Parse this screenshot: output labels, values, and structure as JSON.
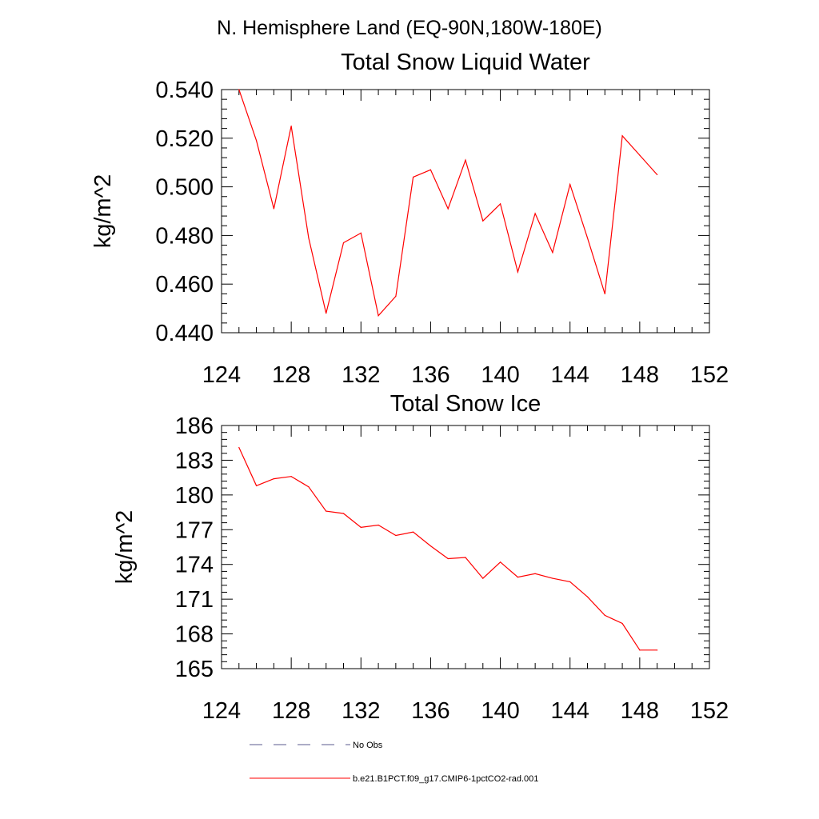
{
  "header": {
    "title": "N. Hemisphere Land (EQ-90N,180W-180E)"
  },
  "chart_data": [
    {
      "type": "line",
      "title": "Total Snow Liquid Water",
      "xlabel": "",
      "ylabel": "kg/m^2",
      "xlim": [
        124,
        152
      ],
      "ylim": [
        0.44,
        0.54
      ],
      "xticks": [
        124,
        128,
        132,
        136,
        140,
        144,
        148,
        152
      ],
      "xtick_labels": [
        "124",
        "128",
        "132",
        "136",
        "140",
        "144",
        "148",
        "152"
      ],
      "yticks": [
        0.44,
        0.46,
        0.48,
        0.5,
        0.52,
        0.54
      ],
      "ytick_labels": [
        "0.440",
        "0.460",
        "0.480",
        "0.500",
        "0.520",
        "0.540"
      ],
      "grid": false,
      "series": [
        {
          "name": "b.e21.B1PCT.f09_g17.CMIP6-1pctCO2-rad.001",
          "color": "#ff0000",
          "x": [
            125,
            126,
            127,
            128,
            129,
            130,
            131,
            132,
            133,
            134,
            135,
            136,
            137,
            138,
            139,
            140,
            141,
            142,
            143,
            144,
            145,
            146,
            147,
            148,
            149
          ],
          "y": [
            0.54,
            0.519,
            0.491,
            0.525,
            0.479,
            0.448,
            0.477,
            0.481,
            0.447,
            0.455,
            0.504,
            0.507,
            0.491,
            0.511,
            0.486,
            0.493,
            0.465,
            0.489,
            0.473,
            0.501,
            0.479,
            0.456,
            0.521,
            0.513,
            0.505
          ]
        }
      ]
    },
    {
      "type": "line",
      "title": "Total Snow Ice",
      "xlabel": "",
      "ylabel": "kg/m^2",
      "xlim": [
        124,
        152
      ],
      "ylim": [
        165,
        186
      ],
      "xticks": [
        124,
        128,
        132,
        136,
        140,
        144,
        148,
        152
      ],
      "xtick_labels": [
        "124",
        "128",
        "132",
        "136",
        "140",
        "144",
        "148",
        "152"
      ],
      "yticks": [
        165,
        168,
        171,
        174,
        177,
        180,
        183,
        186
      ],
      "ytick_labels": [
        "165",
        "168",
        "171",
        "174",
        "177",
        "180",
        "183",
        "186"
      ],
      "grid": false,
      "series": [
        {
          "name": "b.e21.B1PCT.f09_g17.CMIP6-1pctCO2-rad.001",
          "color": "#ff0000",
          "x": [
            125,
            126,
            127,
            128,
            129,
            130,
            131,
            132,
            133,
            134,
            135,
            136,
            137,
            138,
            139,
            140,
            141,
            142,
            143,
            144,
            145,
            146,
            147,
            148,
            149
          ],
          "y": [
            184.1,
            180.8,
            181.4,
            181.6,
            180.7,
            178.6,
            178.4,
            177.2,
            177.4,
            176.5,
            176.8,
            175.6,
            174.5,
            174.6,
            172.8,
            174.2,
            172.9,
            173.2,
            172.8,
            172.5,
            171.2,
            169.6,
            168.9,
            166.6,
            166.6
          ]
        }
      ]
    }
  ],
  "legend": {
    "placement": "bottom",
    "entries": [
      {
        "label": "No Obs",
        "color": "#5a5a8c",
        "style": "dashed"
      },
      {
        "label": "b.e21.B1PCT.f09_g17.CMIP6-1pctCO2-rad.001",
        "color": "#ff0000",
        "style": "solid"
      }
    ]
  }
}
